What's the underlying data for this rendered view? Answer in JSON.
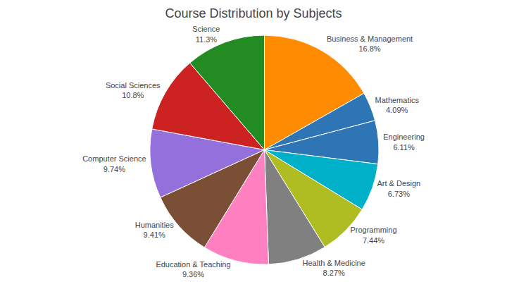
{
  "chart_data": {
    "type": "pie",
    "title": "Course Distribution by Subjects",
    "categories": [
      "Business & Management",
      "Mathematics",
      "Engineering",
      "Art & Design",
      "Programming",
      "Health & Medicine",
      "Education & Teaching",
      "Humanities",
      "Computer Science",
      "Social Sciences",
      "Science"
    ],
    "values": [
      16.8,
      4.09,
      6.11,
      6.73,
      7.44,
      8.27,
      9.36,
      9.41,
      9.74,
      10.8,
      11.3
    ],
    "value_labels": [
      "16.8%",
      "4.09%",
      "6.11%",
      "6.73%",
      "7.44%",
      "8.27%",
      "9.36%",
      "9.41%",
      "9.74%",
      "10.8%",
      "11.3%"
    ],
    "data_labels": true,
    "colors": [
      "#FF8C00",
      "#2E75B6",
      "#2E75B6",
      "#00B0C8",
      "#AFBC22",
      "#808080",
      "#FF80C0",
      "#7B4F35",
      "#9370DB",
      "#CC2222",
      "#228B22"
    ]
  }
}
